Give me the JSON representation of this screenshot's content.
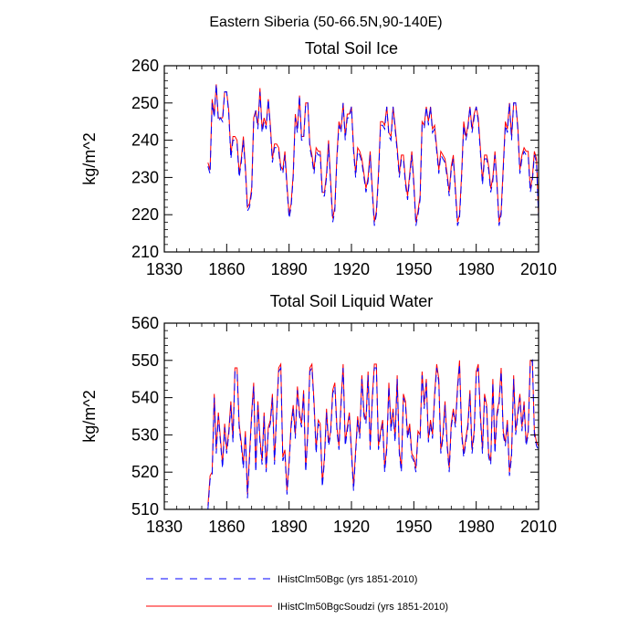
{
  "figure_title": "Eastern Siberia (50-66.5N,90-140E)",
  "colors": {
    "series1": "#0000ff",
    "series2": "#ff0000",
    "axes": "#000000"
  },
  "legend": {
    "placement": "bottom",
    "entries": [
      {
        "label": "IHistClm50Bgc (yrs 1851-2010)",
        "color": "#0000ff",
        "style": "dashed"
      },
      {
        "label": "IHistClm50BgcSoudzi (yrs 1851-2010)",
        "color": "#ff0000",
        "style": "solid"
      }
    ]
  },
  "chart_data": [
    {
      "type": "line",
      "title": "Total Soil Ice",
      "ylabel": "kg/m^2",
      "xlabel": "",
      "xlim": [
        1830,
        2010
      ],
      "ylim": [
        210,
        260
      ],
      "xticks": [
        1830,
        1860,
        1890,
        1920,
        1950,
        1980,
        2010
      ],
      "yticks": [
        210,
        220,
        230,
        240,
        250,
        260
      ],
      "grid": false,
      "x": [
        1851,
        1852,
        1853,
        1854,
        1855,
        1856,
        1857,
        1858,
        1859,
        1860,
        1861,
        1862,
        1863,
        1864,
        1865,
        1866,
        1867,
        1868,
        1869,
        1870,
        1871,
        1872,
        1873,
        1874,
        1875,
        1876,
        1877,
        1878,
        1879,
        1880,
        1881,
        1882,
        1883,
        1884,
        1885,
        1886,
        1887,
        1888,
        1889,
        1890,
        1891,
        1892,
        1893,
        1894,
        1895,
        1896,
        1897,
        1898,
        1899,
        1900,
        1901,
        1902,
        1903,
        1904,
        1905,
        1906,
        1907,
        1908,
        1909,
        1910,
        1911,
        1912,
        1913,
        1914,
        1915,
        1916,
        1917,
        1918,
        1919,
        1920,
        1921,
        1922,
        1923,
        1924,
        1925,
        1926,
        1927,
        1928,
        1929,
        1930,
        1931,
        1932,
        1933,
        1934,
        1935,
        1936,
        1937,
        1938,
        1939,
        1940,
        1941,
        1942,
        1943,
        1944,
        1945,
        1946,
        1947,
        1948,
        1949,
        1950,
        1951,
        1952,
        1953,
        1954,
        1955,
        1956,
        1957,
        1958,
        1959,
        1960,
        1961,
        1962,
        1963,
        1964,
        1965,
        1966,
        1967,
        1968,
        1969,
        1970,
        1971,
        1972,
        1973,
        1974,
        1975,
        1976,
        1977,
        1978,
        1979,
        1980,
        1981,
        1982,
        1983,
        1984,
        1985,
        1986,
        1987,
        1988,
        1989,
        1990,
        1991,
        1992,
        1993,
        1994,
        1995,
        1996,
        1997,
        1998,
        1999,
        2000,
        2001,
        2002,
        2003,
        2004,
        2005,
        2006,
        2007,
        2008,
        2009,
        2010
      ],
      "series": [
        {
          "name": "IHistClm50Bgc (yrs 1851-2010)",
          "values": [
            233,
            231,
            250,
            246,
            255,
            245,
            246,
            245,
            253,
            253,
            247,
            235,
            240,
            240,
            239,
            230,
            234,
            240,
            232,
            221,
            222,
            226,
            245,
            248,
            243,
            253,
            242,
            245,
            243,
            251,
            243,
            234,
            238,
            238,
            237,
            232,
            231,
            236,
            227,
            219,
            222,
            230,
            246,
            242,
            252,
            240,
            240,
            250,
            250,
            238,
            235,
            231,
            237,
            236,
            236,
            225,
            225,
            230,
            239,
            228,
            218,
            221,
            235,
            244,
            242,
            250,
            240,
            246,
            246,
            249,
            237,
            230,
            237,
            236,
            234,
            230,
            226,
            229,
            236,
            226,
            217,
            220,
            230,
            244,
            244,
            243,
            249,
            241,
            240,
            249,
            243,
            237,
            230,
            235,
            235,
            228,
            224,
            230,
            236,
            228,
            217,
            220,
            224,
            244,
            243,
            249,
            244,
            249,
            242,
            243,
            237,
            231,
            236,
            235,
            234,
            230,
            225,
            232,
            235,
            226,
            217,
            219,
            230,
            244,
            240,
            243,
            249,
            242,
            246,
            249,
            245,
            237,
            228,
            235,
            235,
            232,
            226,
            229,
            236,
            228,
            217,
            220,
            232,
            244,
            242,
            250,
            240,
            250,
            250,
            243,
            231,
            235,
            237,
            236,
            236,
            226,
            229,
            236,
            234,
            219
          ]
        },
        {
          "name": "IHistClm50BgcSoudzi (yrs 1851-2010)",
          "values": [
            234,
            232,
            251,
            247,
            255,
            246,
            246,
            246,
            253,
            253,
            248,
            236,
            241,
            241,
            240,
            231,
            235,
            241,
            233,
            222,
            223,
            227,
            246,
            248,
            244,
            254,
            243,
            246,
            244,
            251,
            244,
            235,
            239,
            239,
            238,
            233,
            232,
            237,
            228,
            220,
            223,
            231,
            247,
            243,
            252,
            241,
            241,
            250,
            250,
            239,
            236,
            232,
            238,
            237,
            237,
            226,
            226,
            231,
            240,
            229,
            219,
            222,
            236,
            245,
            243,
            250,
            241,
            247,
            247,
            249,
            238,
            231,
            238,
            237,
            235,
            231,
            227,
            230,
            237,
            227,
            218,
            221,
            231,
            245,
            245,
            244,
            249,
            242,
            241,
            249,
            244,
            238,
            231,
            236,
            236,
            229,
            225,
            231,
            237,
            229,
            218,
            221,
            225,
            245,
            244,
            249,
            245,
            249,
            243,
            244,
            238,
            232,
            237,
            236,
            235,
            231,
            226,
            233,
            236,
            227,
            218,
            220,
            231,
            245,
            241,
            244,
            249,
            243,
            247,
            249,
            246,
            238,
            229,
            236,
            236,
            233,
            227,
            230,
            237,
            229,
            218,
            221,
            233,
            245,
            243,
            250,
            241,
            250,
            250,
            244,
            232,
            236,
            238,
            237,
            237,
            227,
            230,
            237,
            235,
            220
          ]
        }
      ]
    },
    {
      "type": "line",
      "title": "Total Soil Liquid Water",
      "ylabel": "kg/m^2",
      "xlabel": "",
      "xlim": [
        1830,
        2010
      ],
      "ylim": [
        510,
        560
      ],
      "xticks": [
        1830,
        1860,
        1890,
        1920,
        1950,
        1980,
        2010
      ],
      "yticks": [
        510,
        520,
        530,
        540,
        550,
        560
      ],
      "grid": false,
      "x": [
        1851,
        1852,
        1853,
        1854,
        1855,
        1856,
        1857,
        1858,
        1859,
        1860,
        1861,
        1862,
        1863,
        1864,
        1865,
        1866,
        1867,
        1868,
        1869,
        1870,
        1871,
        1872,
        1873,
        1874,
        1875,
        1876,
        1877,
        1878,
        1879,
        1880,
        1881,
        1882,
        1883,
        1884,
        1885,
        1886,
        1887,
        1888,
        1889,
        1890,
        1891,
        1892,
        1893,
        1894,
        1895,
        1896,
        1897,
        1898,
        1899,
        1900,
        1901,
        1902,
        1903,
        1904,
        1905,
        1906,
        1907,
        1908,
        1909,
        1910,
        1911,
        1912,
        1913,
        1914,
        1915,
        1916,
        1917,
        1918,
        1919,
        1920,
        1921,
        1922,
        1923,
        1924,
        1925,
        1926,
        1927,
        1928,
        1929,
        1930,
        1931,
        1932,
        1933,
        1934,
        1935,
        1936,
        1937,
        1938,
        1939,
        1940,
        1941,
        1942,
        1943,
        1944,
        1945,
        1946,
        1947,
        1948,
        1949,
        1950,
        1951,
        1952,
        1953,
        1954,
        1955,
        1956,
        1957,
        1958,
        1959,
        1960,
        1961,
        1962,
        1963,
        1964,
        1965,
        1966,
        1967,
        1968,
        1969,
        1970,
        1971,
        1972,
        1973,
        1974,
        1975,
        1976,
        1977,
        1978,
        1979,
        1980,
        1981,
        1982,
        1983,
        1984,
        1985,
        1986,
        1987,
        1988,
        1989,
        1990,
        1991,
        1992,
        1993,
        1994,
        1995,
        1996,
        1997,
        1998,
        1999,
        2000,
        2001,
        2002,
        2003,
        2004,
        2005,
        2006,
        2007,
        2008,
        2009,
        2010
      ],
      "series": [
        {
          "name": "IHistClm50Bgc (yrs 1851-2010)",
          "values": [
            510,
            518,
            519,
            540,
            525,
            535,
            528,
            521,
            532,
            525,
            530,
            538,
            528,
            547,
            547,
            532,
            527,
            521,
            530,
            513,
            524,
            535,
            543,
            520,
            538,
            528,
            522,
            535,
            520,
            531,
            533,
            540,
            522,
            535,
            547,
            548,
            523,
            525,
            514,
            522,
            532,
            537,
            529,
            542,
            535,
            532,
            541,
            520,
            530,
            547,
            548,
            538,
            525,
            533,
            532,
            516,
            523,
            536,
            527,
            530,
            541,
            543,
            531,
            526,
            538,
            548,
            527,
            531,
            535,
            525,
            515,
            525,
            534,
            529,
            545,
            535,
            533,
            546,
            526,
            539,
            548,
            548,
            526,
            530,
            533,
            520,
            526,
            543,
            531,
            536,
            528,
            545,
            525,
            520,
            540,
            538,
            529,
            532,
            524,
            523,
            520,
            530,
            529,
            546,
            537,
            544,
            528,
            533,
            529,
            540,
            548,
            544,
            525,
            529,
            538,
            527,
            520,
            532,
            536,
            532,
            542,
            549,
            530,
            524,
            528,
            532,
            541,
            525,
            530,
            546,
            548,
            535,
            525,
            540,
            537,
            524,
            522,
            544,
            525,
            535,
            538,
            547,
            530,
            527,
            533,
            519,
            524,
            545,
            530,
            535,
            540,
            531,
            538,
            527,
            530,
            549,
            550,
            530,
            527,
            526
          ]
        },
        {
          "name": "IHistClm50BgcSoudzi (yrs 1851-2010)",
          "values": [
            511,
            519,
            520,
            541,
            526,
            536,
            529,
            522,
            533,
            526,
            531,
            539,
            529,
            548,
            548,
            533,
            528,
            522,
            531,
            514,
            525,
            536,
            544,
            521,
            539,
            529,
            523,
            536,
            521,
            532,
            534,
            541,
            523,
            536,
            548,
            549,
            524,
            526,
            515,
            523,
            533,
            538,
            530,
            543,
            536,
            533,
            542,
            521,
            531,
            548,
            549,
            539,
            526,
            534,
            533,
            517,
            524,
            537,
            528,
            531,
            542,
            544,
            532,
            527,
            539,
            549,
            528,
            532,
            536,
            526,
            516,
            526,
            535,
            530,
            546,
            536,
            534,
            547,
            527,
            540,
            549,
            549,
            527,
            531,
            534,
            521,
            527,
            544,
            532,
            537,
            529,
            546,
            526,
            521,
            541,
            539,
            530,
            533,
            525,
            524,
            521,
            531,
            530,
            547,
            538,
            545,
            529,
            534,
            530,
            541,
            549,
            545,
            526,
            530,
            539,
            528,
            521,
            533,
            537,
            533,
            543,
            550,
            531,
            525,
            529,
            533,
            542,
            526,
            531,
            547,
            549,
            536,
            526,
            541,
            538,
            525,
            523,
            545,
            526,
            536,
            539,
            548,
            531,
            528,
            534,
            520,
            525,
            546,
            531,
            536,
            541,
            532,
            539,
            528,
            531,
            550,
            550,
            531,
            528,
            527
          ]
        }
      ]
    }
  ]
}
